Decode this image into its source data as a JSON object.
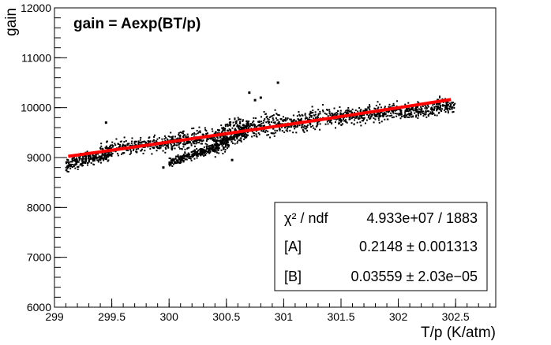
{
  "chart_data": {
    "type": "scatter",
    "title": "gain = Aexp(BT/p)",
    "xlabel": "T/p (K/atm)",
    "ylabel": "gain",
    "xlim": [
      299,
      302.85
    ],
    "ylim": [
      6000,
      12000
    ],
    "x_ticks": [
      299,
      299.5,
      300,
      300.5,
      301,
      301.5,
      302,
      302.5
    ],
    "x_tick_labels": [
      "299",
      "299.5",
      "300",
      "300.5",
      "301",
      "301.5",
      "302",
      "302.5"
    ],
    "y_ticks": [
      6000,
      7000,
      8000,
      9000,
      10000,
      11000,
      12000
    ],
    "y_tick_labels": [
      "6000",
      "7000",
      "8000",
      "9000",
      "10000",
      "11000",
      "12000"
    ],
    "grid": false,
    "legend": "none",
    "series": [
      {
        "kind": "points",
        "marker_color": "#000000",
        "trend_segments": [
          {
            "x": [
              299.1,
              299.5
            ],
            "y": [
              8850,
              9100
            ],
            "spread": 130
          },
          {
            "x": [
              299.4,
              300.0
            ],
            "y": [
              9150,
              9300
            ],
            "spread": 150
          },
          {
            "x": [
              300.0,
              300.5
            ],
            "y": [
              9280,
              9500
            ],
            "spread": 170
          },
          {
            "x": [
              300.0,
              300.4
            ],
            "y": [
              8900,
              9200
            ],
            "spread": 90
          },
          {
            "x": [
              300.4,
              300.7
            ],
            "y": [
              9200,
              9600
            ],
            "spread": 160
          },
          {
            "x": [
              300.5,
              301.0
            ],
            "y": [
              9550,
              9700
            ],
            "spread": 220
          },
          {
            "x": [
              301.0,
              301.5
            ],
            "y": [
              9650,
              9850
            ],
            "spread": 190
          },
          {
            "x": [
              301.5,
              302.0
            ],
            "y": [
              9800,
              9950
            ],
            "spread": 160
          },
          {
            "x": [
              302.0,
              302.5
            ],
            "y": [
              9900,
              10050
            ],
            "spread": 150
          }
        ],
        "outliers": [
          {
            "x": 300.7,
            "y": 10300
          },
          {
            "x": 300.95,
            "y": 10500
          },
          {
            "x": 300.8,
            "y": 10200
          },
          {
            "x": 300.55,
            "y": 8950
          },
          {
            "x": 300.75,
            "y": 10150
          },
          {
            "x": 299.45,
            "y": 9700
          },
          {
            "x": 299.95,
            "y": 8800
          }
        ]
      },
      {
        "kind": "fit",
        "line_color": "#ff0000",
        "function": "A*exp(B*x)",
        "A": 0.2148,
        "B": 0.03559,
        "x_range": [
          299.12,
          302.46
        ]
      }
    ],
    "stats_box": {
      "rows": [
        {
          "label": "χ² / ndf",
          "value": "4.933e+07 / 1883"
        },
        {
          "label": "[A]",
          "value": "0.2148 ± 0.001313"
        },
        {
          "label": "[B]",
          "value": "0.03559 ± 2.03e−05"
        }
      ]
    }
  }
}
